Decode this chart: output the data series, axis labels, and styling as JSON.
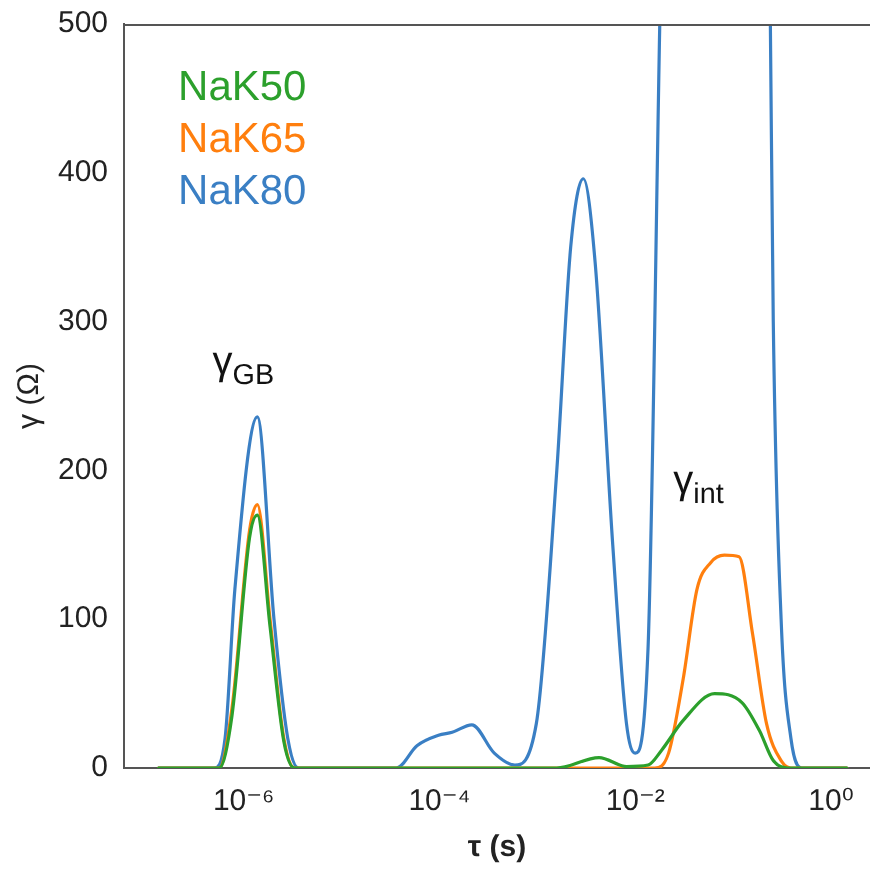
{
  "chart_data": {
    "type": "line",
    "xlabel": "τ (s)",
    "ylabel": "γ (Ω)",
    "log": "x",
    "grid": false,
    "legend": "top left",
    "marker": "none",
    "line_style": "solid",
    "xlim": [
      6.3e-08,
      2.5
    ],
    "xticks": [
      {
        "value": 1e-06,
        "label": "10⁻⁶"
      },
      {
        "value": 0.0001,
        "label": "10⁻⁴"
      },
      {
        "value": 0.01,
        "label": "10⁻²"
      },
      {
        "value": 1,
        "label": "10⁰"
      }
    ],
    "ylim": [
      0,
      500
    ],
    "yticks": [
      0,
      100,
      200,
      300,
      400,
      500
    ],
    "annotations": [
      "γ$_{GB}$",
      "γ$_{int}$"
    ],
    "series": [
      {
        "name": "NaK50",
        "color": "#2ca02c",
        "x": [
          1.35e-07,
          5.62e-07,
          7.59e-07,
          1.15e-06,
          1.38e-06,
          1.86e-06,
          2.57e-06,
          3.31e-06,
          0.00158,
          0.00427,
          0.00813,
          0.0135,
          0.0186,
          0.0309,
          0.0646,
          0.123,
          0.186,
          0.257,
          0.363,
          1.45
        ],
        "values": [
          0,
          0,
          35,
          155,
          170,
          95,
          18,
          0,
          0,
          7,
          1,
          2,
          12,
          32,
          50,
          44,
          25,
          5,
          0,
          0
        ]
      },
      {
        "name": "NaK65",
        "color": "#ff7f0e",
        "x": [
          1.35e-07,
          5.62e-07,
          7.59e-07,
          1.15e-06,
          1.38e-06,
          1.86e-06,
          2.57e-06,
          3.31e-06,
          0.0158,
          0.0219,
          0.0309,
          0.0427,
          0.0589,
          0.0813,
          0.115,
          0.158,
          0.219,
          0.309,
          0.389,
          1.45
        ],
        "values": [
          0,
          0,
          40,
          160,
          177,
          100,
          20,
          0,
          0,
          10,
          60,
          120,
          138,
          143,
          142,
          90,
          30,
          5,
          0,
          0
        ]
      },
      {
        "name": "NaK80",
        "color": "#3a7fc4",
        "x": [
          1.35e-07,
          5.01e-07,
          6.46e-07,
          8.13e-07,
          1.38e-06,
          2.04e-06,
          2.82e-06,
          3.63e-06,
          3.63e-05,
          5.89e-05,
          9.77e-05,
          0.000135,
          0.000214,
          0.000363,
          0.000589,
          0.000977,
          0.00158,
          0.00219,
          0.00295,
          0.00389,
          0.00589,
          0.00813,
          0.01,
          0.0135,
          0.0178,
          0.1,
          0.24,
          0.257,
          0.309,
          0.389,
          0.501,
          1.45
        ],
        "values": [
          0,
          0,
          20,
          120,
          236,
          100,
          20,
          0,
          0,
          15,
          22,
          24,
          29,
          10,
          2,
          30,
          200,
          350,
          396,
          340,
          150,
          30,
          10,
          80,
          500,
          null,
          500,
          300,
          100,
          20,
          0,
          0
        ]
      }
    ]
  }
}
